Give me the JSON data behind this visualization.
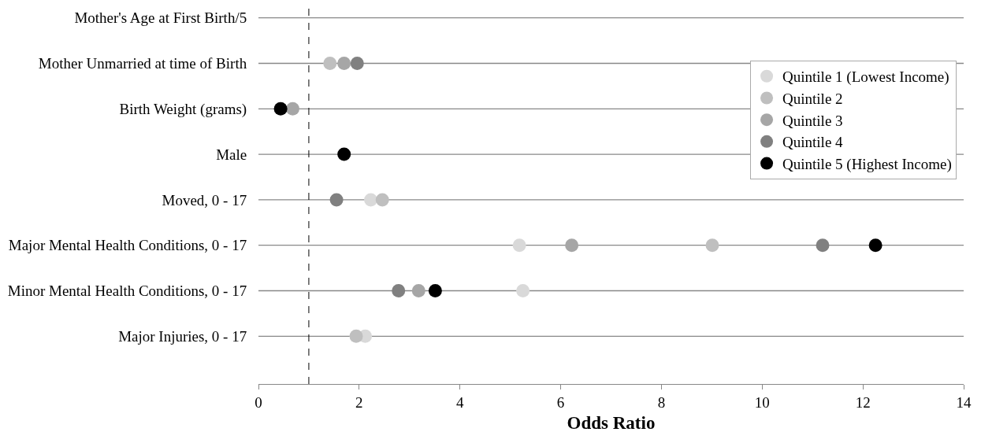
{
  "chart_data": {
    "type": "scatter",
    "orientation": "horizontal",
    "xlabel": "Odds Ratio",
    "categories": [
      "Mother's Age at First Birth/5",
      "Mother Unmarried at time of Birth",
      "Birth Weight (grams)",
      "Male",
      "Moved, 0 - 17",
      "Major Mental Health Conditions, 0 - 17",
      "Minor Mental Health Conditions, 0 - 17",
      "Major Injuries, 0 - 17"
    ],
    "series": [
      {
        "name": "Quintile 1 (Lowest Income)",
        "color": "#d9d9d9",
        "values": [
          null,
          null,
          null,
          null,
          2.23,
          5.18,
          5.25,
          2.12
        ]
      },
      {
        "name": "Quintile 2",
        "color": "#bfbfbf",
        "values": [
          null,
          1.42,
          null,
          null,
          2.46,
          9.01,
          null,
          1.94
        ]
      },
      {
        "name": "Quintile 3",
        "color": "#a6a6a6",
        "values": [
          null,
          1.7,
          0.68,
          null,
          null,
          6.22,
          3.18,
          null
        ]
      },
      {
        "name": "Quintile 4",
        "color": "#808080",
        "values": [
          null,
          1.96,
          null,
          null,
          1.55,
          11.2,
          2.78,
          null
        ]
      },
      {
        "name": "Quintile 5 (Highest Income)",
        "color": "#000000",
        "values": [
          null,
          null,
          0.44,
          1.7,
          null,
          12.25,
          3.51,
          null
        ]
      }
    ],
    "xlim": [
      0,
      14
    ],
    "xticks": [
      0,
      2,
      4,
      6,
      8,
      10,
      12,
      14
    ],
    "ref_lines": [
      {
        "axis": "x",
        "value": 1,
        "color": "#000000",
        "line_style": "dashed"
      }
    ],
    "grid": "y",
    "legend": "top right",
    "marker": "circle"
  }
}
